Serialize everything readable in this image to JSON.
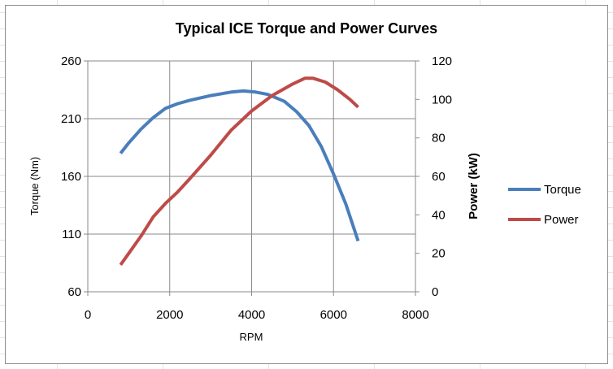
{
  "chart_data": {
    "type": "line",
    "title": "Typical ICE Torque and Power Curves",
    "xlabel": "RPM",
    "ylabel": "Torque (Nm)",
    "y2label": "Power (kW)",
    "xlim": [
      0,
      8000
    ],
    "ylim": [
      60,
      260
    ],
    "y2lim": [
      0,
      120
    ],
    "x_ticks": [
      0,
      2000,
      4000,
      6000,
      8000
    ],
    "y_ticks": [
      60,
      110,
      160,
      210,
      260
    ],
    "y2_ticks": [
      0,
      20,
      40,
      60,
      80,
      100,
      120
    ],
    "grid": true,
    "legend": "right",
    "series": [
      {
        "name": "Torque",
        "axis": "left",
        "color": "#4a7ebb",
        "x": [
          800,
          1000,
          1300,
          1600,
          1900,
          2200,
          2500,
          3000,
          3500,
          3800,
          4100,
          4400,
          4800,
          5100,
          5400,
          5700,
          6000,
          6300,
          6600
        ],
        "y": [
          180,
          189,
          201,
          211,
          219,
          223,
          226,
          230,
          233,
          234,
          233,
          231,
          225,
          216,
          204,
          186,
          162,
          136,
          104
        ]
      },
      {
        "name": "Power",
        "axis": "right",
        "color": "#be4b48",
        "x": [
          800,
          1000,
          1300,
          1600,
          1900,
          2200,
          2500,
          3000,
          3500,
          4000,
          4500,
          5000,
          5300,
          5500,
          5800,
          6100,
          6400,
          6600
        ],
        "y": [
          14,
          20,
          29,
          39,
          46,
          52,
          59,
          71,
          84,
          94,
          102,
          108,
          111,
          111,
          109,
          105,
          100,
          96
        ]
      }
    ]
  }
}
